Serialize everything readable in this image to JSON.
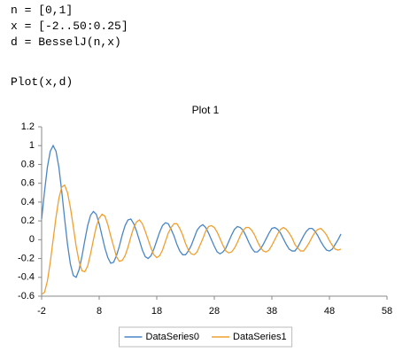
{
  "code": [
    [
      "n = [0,1]",
      "x = [-2..50:0.25]",
      "d = BesselJ(n,x)"
    ],
    [
      "Plot(x,d)"
    ]
  ],
  "chart_data": {
    "type": "line",
    "title": "Plot 1",
    "x": [
      -2,
      -1.5,
      -1,
      -0.5,
      0,
      0.5,
      1,
      1.5,
      2,
      2.5,
      3,
      3.5,
      4,
      4.5,
      5,
      5.5,
      6,
      6.5,
      7,
      7.5,
      8,
      8.5,
      9,
      9.5,
      10,
      10.5,
      11,
      11.5,
      12,
      12.5,
      13,
      13.5,
      14,
      14.5,
      15,
      15.5,
      16,
      16.5,
      17,
      17.5,
      18,
      18.5,
      19,
      19.5,
      20,
      20.5,
      21,
      21.5,
      22,
      22.5,
      23,
      23.5,
      24,
      24.5,
      25,
      25.5,
      26,
      26.5,
      27,
      27.5,
      28,
      28.5,
      29,
      29.5,
      30,
      30.5,
      31,
      31.5,
      32,
      32.5,
      33,
      33.5,
      34,
      34.5,
      35,
      35.5,
      36,
      36.5,
      37,
      37.5,
      38,
      38.5,
      39,
      39.5,
      40,
      40.5,
      41,
      41.5,
      42,
      42.5,
      43,
      43.5,
      44,
      44.5,
      45,
      45.5,
      46,
      46.5,
      47,
      47.5,
      48,
      48.5,
      49,
      49.5,
      50
    ],
    "series": [
      {
        "name": "DataSeries0",
        "color": "#4a86c5",
        "values": [
          0.22,
          0.51,
          0.77,
          0.94,
          1,
          0.94,
          0.77,
          0.51,
          0.22,
          -0.05,
          -0.26,
          -0.38,
          -0.4,
          -0.32,
          -0.18,
          -0.01,
          0.15,
          0.26,
          0.3,
          0.27,
          0.17,
          0.04,
          -0.09,
          -0.19,
          -0.25,
          -0.24,
          -0.17,
          -0.07,
          0.05,
          0.15,
          0.21,
          0.22,
          0.17,
          0.09,
          -0.01,
          -0.11,
          -0.18,
          -0.2,
          -0.17,
          -0.1,
          -0.01,
          0.08,
          0.15,
          0.18,
          0.17,
          0.11,
          0.04,
          -0.05,
          -0.12,
          -0.16,
          -0.16,
          -0.12,
          -0.06,
          0.02,
          0.1,
          0.14,
          0.16,
          0.13,
          0.07,
          0,
          -0.07,
          -0.13,
          -0.15,
          -0.13,
          -0.09,
          -0.02,
          0.05,
          0.11,
          0.14,
          0.13,
          0.1,
          0.04,
          -0.03,
          -0.09,
          -0.13,
          -0.13,
          -0.1,
          -0.05,
          0.01,
          0.07,
          0.12,
          0.13,
          0.11,
          0.07,
          0.01,
          -0.05,
          -0.1,
          -0.12,
          -0.12,
          -0.08,
          -0.02,
          0.04,
          0.09,
          0.12,
          0.12,
          0.09,
          0.04,
          -0.02,
          -0.07,
          -0.11,
          -0.12,
          -0.1,
          -0.05,
          0,
          0.06
        ]
      },
      {
        "name": "DataSeries1",
        "color": "#f0a030",
        "values": [
          -0.58,
          -0.56,
          -0.44,
          -0.24,
          0,
          0.24,
          0.44,
          0.56,
          0.58,
          0.5,
          0.34,
          0.14,
          -0.07,
          -0.23,
          -0.33,
          -0.34,
          -0.28,
          -0.15,
          0,
          0.14,
          0.23,
          0.27,
          0.25,
          0.16,
          0.04,
          -0.07,
          -0.18,
          -0.23,
          -0.22,
          -0.17,
          -0.08,
          0.03,
          0.13,
          0.19,
          0.21,
          0.17,
          0.09,
          0,
          -0.09,
          -0.16,
          -0.19,
          -0.17,
          -0.11,
          -0.02,
          0.07,
          0.13,
          0.17,
          0.17,
          0.12,
          0.05,
          -0.04,
          -0.11,
          -0.15,
          -0.16,
          -0.13,
          -0.06,
          0.01,
          0.09,
          0.14,
          0.15,
          0.13,
          0.08,
          0.01,
          -0.06,
          -0.12,
          -0.14,
          -0.13,
          -0.09,
          -0.03,
          0.04,
          0.1,
          0.13,
          0.13,
          0.1,
          0.05,
          -0.02,
          -0.08,
          -0.12,
          -0.13,
          -0.11,
          -0.06,
          0,
          0.06,
          0.11,
          0.13,
          0.11,
          0.07,
          0.02,
          -0.05,
          -0.09,
          -0.12,
          -0.12,
          -0.08,
          -0.03,
          0.03,
          0.08,
          0.11,
          0.12,
          0.09,
          0.05,
          -0.01,
          -0.06,
          -0.1,
          -0.11,
          -0.1
        ]
      }
    ],
    "xlim": [
      -2,
      58
    ],
    "xticks": [
      -2,
      8,
      18,
      28,
      38,
      48,
      58
    ],
    "ylim": [
      -0.6,
      1.2
    ],
    "yticks": [
      -0.6,
      -0.4,
      -0.2,
      0,
      0.2,
      0.4,
      0.6,
      0.8,
      1,
      1.2
    ],
    "grid": false,
    "legend": "bottom"
  }
}
